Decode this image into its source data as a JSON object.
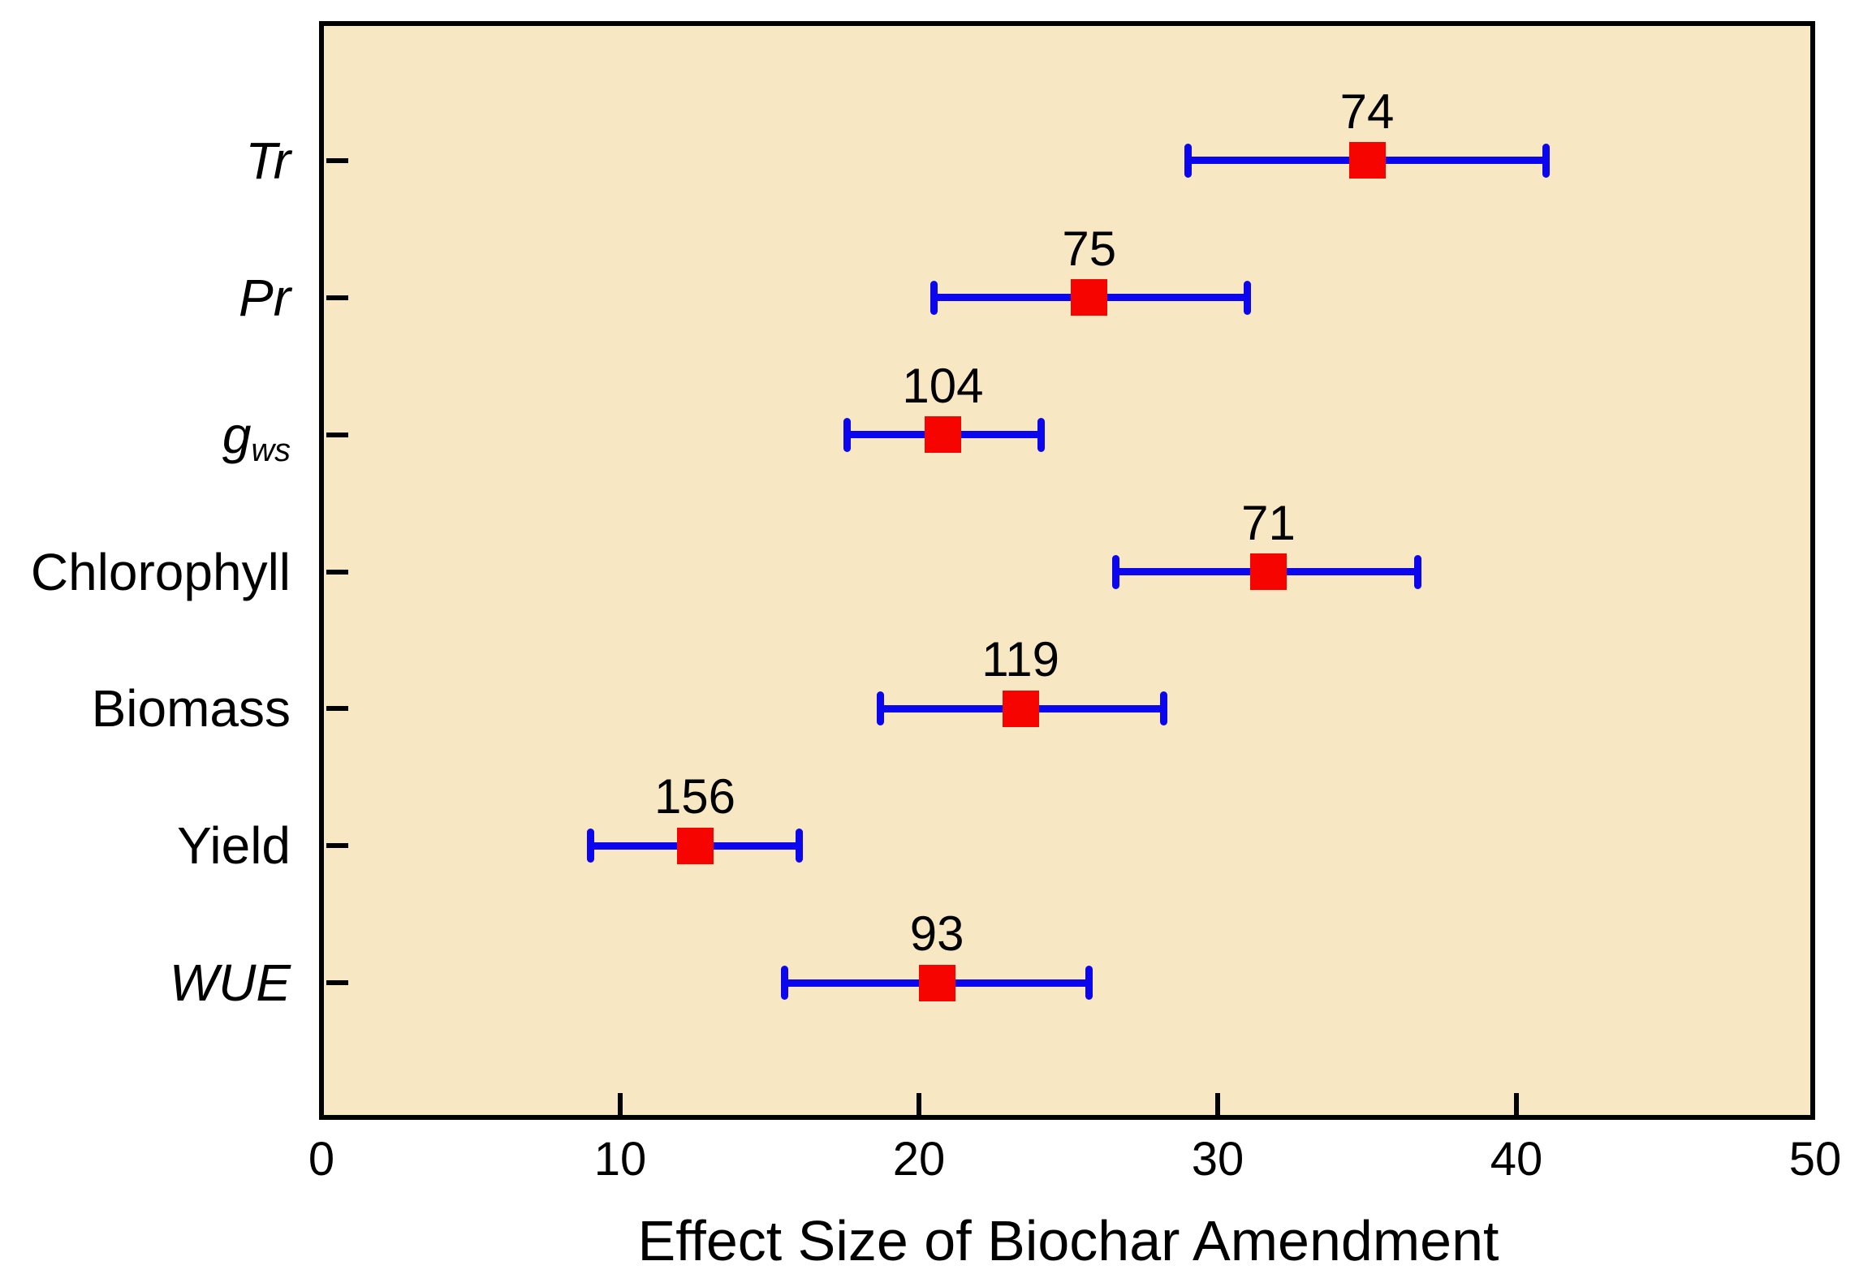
{
  "chart_data": {
    "type": "scatter",
    "subtype": "horizontal-error-bar-forest-plot",
    "title": "",
    "xlabel": "Effect Size of Biochar Amendment",
    "ylabel": "",
    "xlim": [
      0,
      50
    ],
    "xticks": [
      0,
      10,
      20,
      30,
      40,
      50
    ],
    "inner_xticks": [
      10,
      20,
      30,
      40
    ],
    "grid": false,
    "legend": null,
    "plot_background": "#f8e7c3",
    "frame_color": "#000000",
    "errorbar_color": "#0b06ee",
    "marker_color": "#f50400",
    "text_color": "#000000",
    "categories_top_to_bottom": [
      "Tr",
      "Pr",
      "gws",
      "Chlorophyll",
      "Biomass",
      "Yield",
      "WUE"
    ],
    "rows": [
      {
        "label": "Tr",
        "sub": "",
        "italic": true,
        "n_label": "74",
        "mean": 35.0,
        "ci_low": 29.0,
        "ci_high": 41.0
      },
      {
        "label": "Pr",
        "sub": "",
        "italic": true,
        "n_label": "75",
        "mean": 25.7,
        "ci_low": 20.5,
        "ci_high": 31.0
      },
      {
        "label": "g",
        "sub": "ws",
        "italic": true,
        "n_label": "104",
        "mean": 20.8,
        "ci_low": 17.6,
        "ci_high": 24.1
      },
      {
        "label": "Chlorophyll",
        "sub": "",
        "italic": false,
        "n_label": "71",
        "mean": 31.7,
        "ci_low": 26.6,
        "ci_high": 36.7
      },
      {
        "label": "Biomass",
        "sub": "",
        "italic": false,
        "n_label": "119",
        "mean": 23.4,
        "ci_low": 18.7,
        "ci_high": 28.2
      },
      {
        "label": "Yield",
        "sub": "",
        "italic": false,
        "n_label": "156",
        "mean": 12.5,
        "ci_low": 9.0,
        "ci_high": 16.0
      },
      {
        "label": "WUE",
        "sub": "",
        "italic": true,
        "n_label": "93",
        "mean": 20.6,
        "ci_low": 15.5,
        "ci_high": 25.7
      }
    ]
  }
}
